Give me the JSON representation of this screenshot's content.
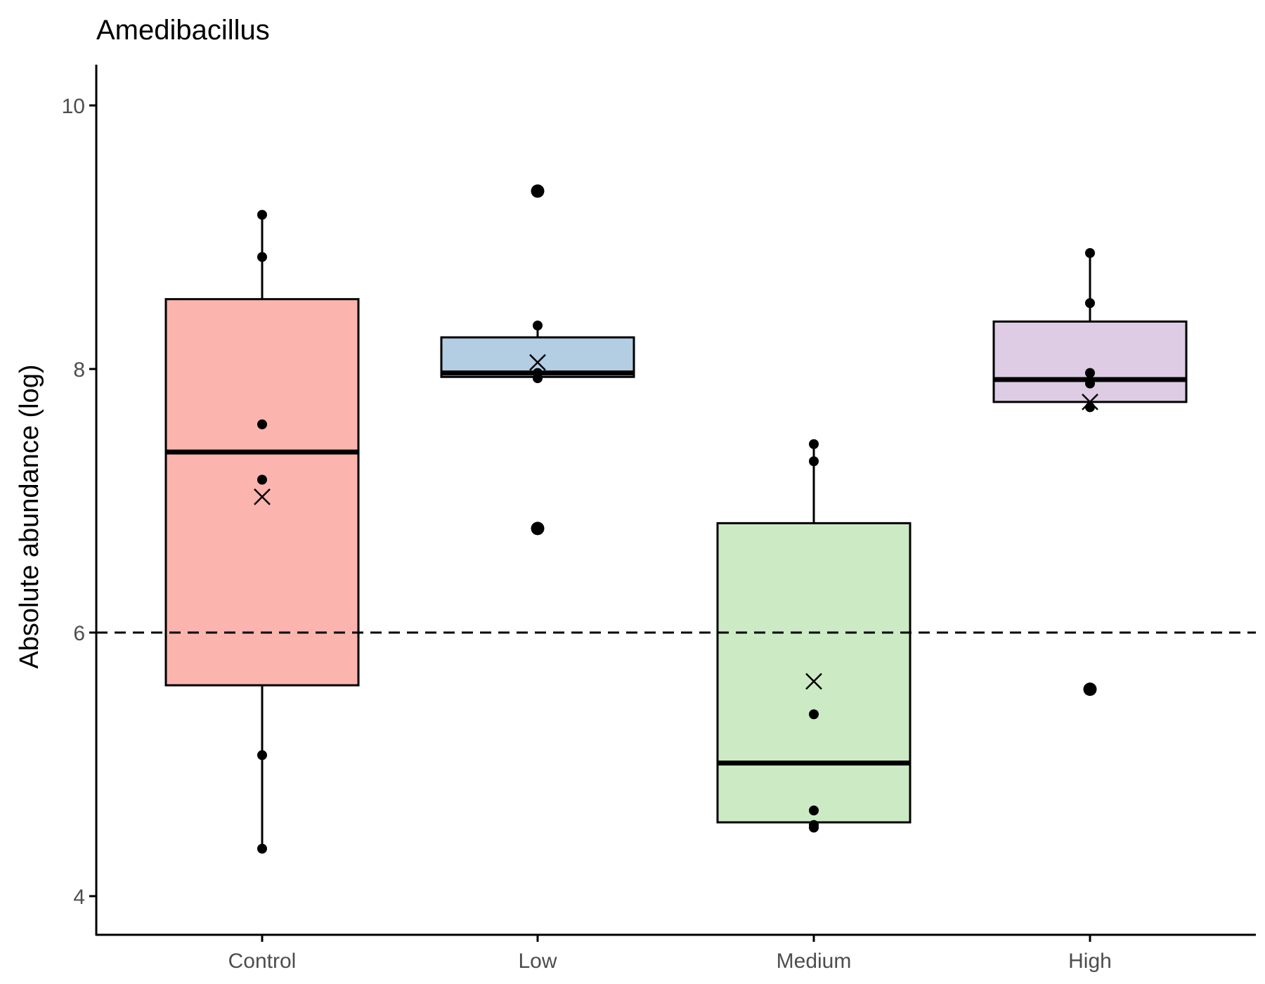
{
  "chart_data": {
    "type": "box",
    "title": "Amedibacillus",
    "xlabel": "",
    "ylabel": "Absolute abundance (log)",
    "ylim": [
      3.7,
      10.3
    ],
    "yticks": [
      4,
      6,
      8,
      10
    ],
    "reference_line": 6,
    "categories": [
      "Control",
      "Low",
      "Medium",
      "High"
    ],
    "colors": {
      "Control": "#fbb4ae",
      "Low": "#b3cde3",
      "Medium": "#ccebc5",
      "High": "#decbe4"
    },
    "boxes": [
      {
        "category": "Control",
        "q1": 5.6,
        "median": 7.37,
        "q3": 8.53,
        "whisker_low": 4.36,
        "whisker_high": 9.17,
        "mean": 7.03,
        "points": [
          9.17,
          8.85,
          7.58,
          7.16,
          5.07,
          4.36
        ],
        "outliers": []
      },
      {
        "category": "Low",
        "q1": 7.94,
        "median": 7.97,
        "q3": 8.24,
        "whisker_low": 7.94,
        "whisker_high": 8.33,
        "mean": 8.05,
        "points": [
          8.33,
          7.97,
          7.93
        ],
        "outliers": [
          9.35,
          6.79
        ]
      },
      {
        "category": "Medium",
        "q1": 4.56,
        "median": 5.01,
        "q3": 6.83,
        "whisker_low": 4.52,
        "whisker_high": 7.43,
        "mean": 5.63,
        "points": [
          7.43,
          7.3,
          5.38,
          4.65,
          4.52,
          4.54
        ],
        "outliers": []
      },
      {
        "category": "High",
        "q1": 7.75,
        "median": 7.92,
        "q3": 8.36,
        "whisker_low": 7.71,
        "whisker_high": 8.88,
        "mean": 7.75,
        "points": [
          8.88,
          8.5,
          7.97,
          7.89,
          7.71
        ],
        "outliers": [
          5.57
        ]
      }
    ]
  }
}
